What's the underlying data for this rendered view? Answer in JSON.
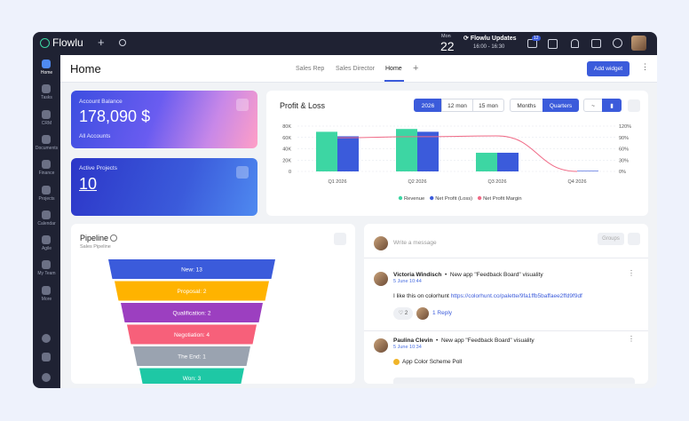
{
  "topbar": {
    "brand": "Flowlu",
    "event_day": "Mon",
    "event_date": "22",
    "event_title": "Flowlu Updates",
    "event_time": "16:00 - 16:30",
    "notification_count": "12"
  },
  "sidebar": [
    "Home",
    "Tasks",
    "CRM",
    "Documents",
    "Finance",
    "Projects",
    "Calendar",
    "Agile",
    "My Team",
    "More"
  ],
  "header": {
    "title": "Home",
    "tabs": [
      "Sales Rep",
      "Sales Director",
      "Home"
    ],
    "add_tab": "+",
    "add_widget": "Add widget"
  },
  "account_balance": {
    "label": "Account Balance",
    "amount": "178,090 $",
    "link": "All Accounts"
  },
  "active_projects": {
    "label": "Active Projects",
    "count": "10"
  },
  "profit_loss": {
    "title": "Profit & Loss",
    "period_buttons": [
      "2026",
      "12 mon",
      "15 mon"
    ],
    "grouping_buttons": [
      "Months",
      "Quarters"
    ],
    "chart": {
      "type": "bar",
      "categories": [
        "Q1 2026",
        "Q2 2026",
        "Q3 2026",
        "Q4 2026"
      ],
      "series": [
        {
          "name": "Revenue",
          "color": "#3dd6a3",
          "values": [
            70000,
            75000,
            33000,
            0
          ]
        },
        {
          "name": "Net Profit (Loss)",
          "color": "#3b5bdb",
          "values": [
            62000,
            70000,
            33000,
            1000
          ]
        },
        {
          "name": "Net Profit Margin",
          "color": "#f06a86",
          "type": "line",
          "axis": "y2",
          "values": [
            89,
            92,
            94,
            0
          ]
        }
      ],
      "ylim": [
        0,
        80000
      ],
      "yticks": [
        0,
        {
          "value": 20000,
          "label": "20K"
        },
        {
          "value": 40000,
          "label": "40K"
        },
        {
          "value": 60000,
          "label": "60K"
        },
        {
          "value": 80000,
          "label": "80K"
        }
      ],
      "y2lim": [
        0,
        120
      ],
      "y2ticks": [
        {
          "value": 0,
          "label": "0%"
        },
        {
          "value": 30,
          "label": "30%"
        },
        {
          "value": 60,
          "label": "60%"
        },
        {
          "value": 90,
          "label": "90%"
        },
        {
          "value": 120,
          "label": "120%"
        }
      ],
      "grid": true,
      "legend": "bottom"
    }
  },
  "pipeline": {
    "title": "Pipeline",
    "subtitle": "Sales Pipeline",
    "stages": [
      {
        "label": "New: 13",
        "color": "#3b5bdb"
      },
      {
        "label": "Proposal: 2",
        "color": "#ffb300"
      },
      {
        "label": "Qualification: 2",
        "color": "#9c3fc0"
      },
      {
        "label": "Negotiation: 4",
        "color": "#f7607a"
      },
      {
        "label": "The End: 1",
        "color": "#9aa3b0"
      },
      {
        "label": "Won: 3",
        "color": "#1ec8a5"
      }
    ]
  },
  "feed": {
    "composer_placeholder": "Write a message",
    "groups_button": "Groups",
    "posts": [
      {
        "author": "Victoria Windisch",
        "title": "New app \"Feedback Board\" visuality",
        "date": "5 June 10:44",
        "text": "I like this on colorhunt ",
        "link": "https://colorhunt.co/palette/9fa1ffb5baffaee2ffd9f9df",
        "likes": "2",
        "replies": "1 Reply"
      },
      {
        "author": "Paulina Clevin",
        "title": "New app \"Feedback Board\" visuality",
        "date": "5 June 10:34",
        "poll": "App Color Scheme Poll"
      }
    ]
  }
}
